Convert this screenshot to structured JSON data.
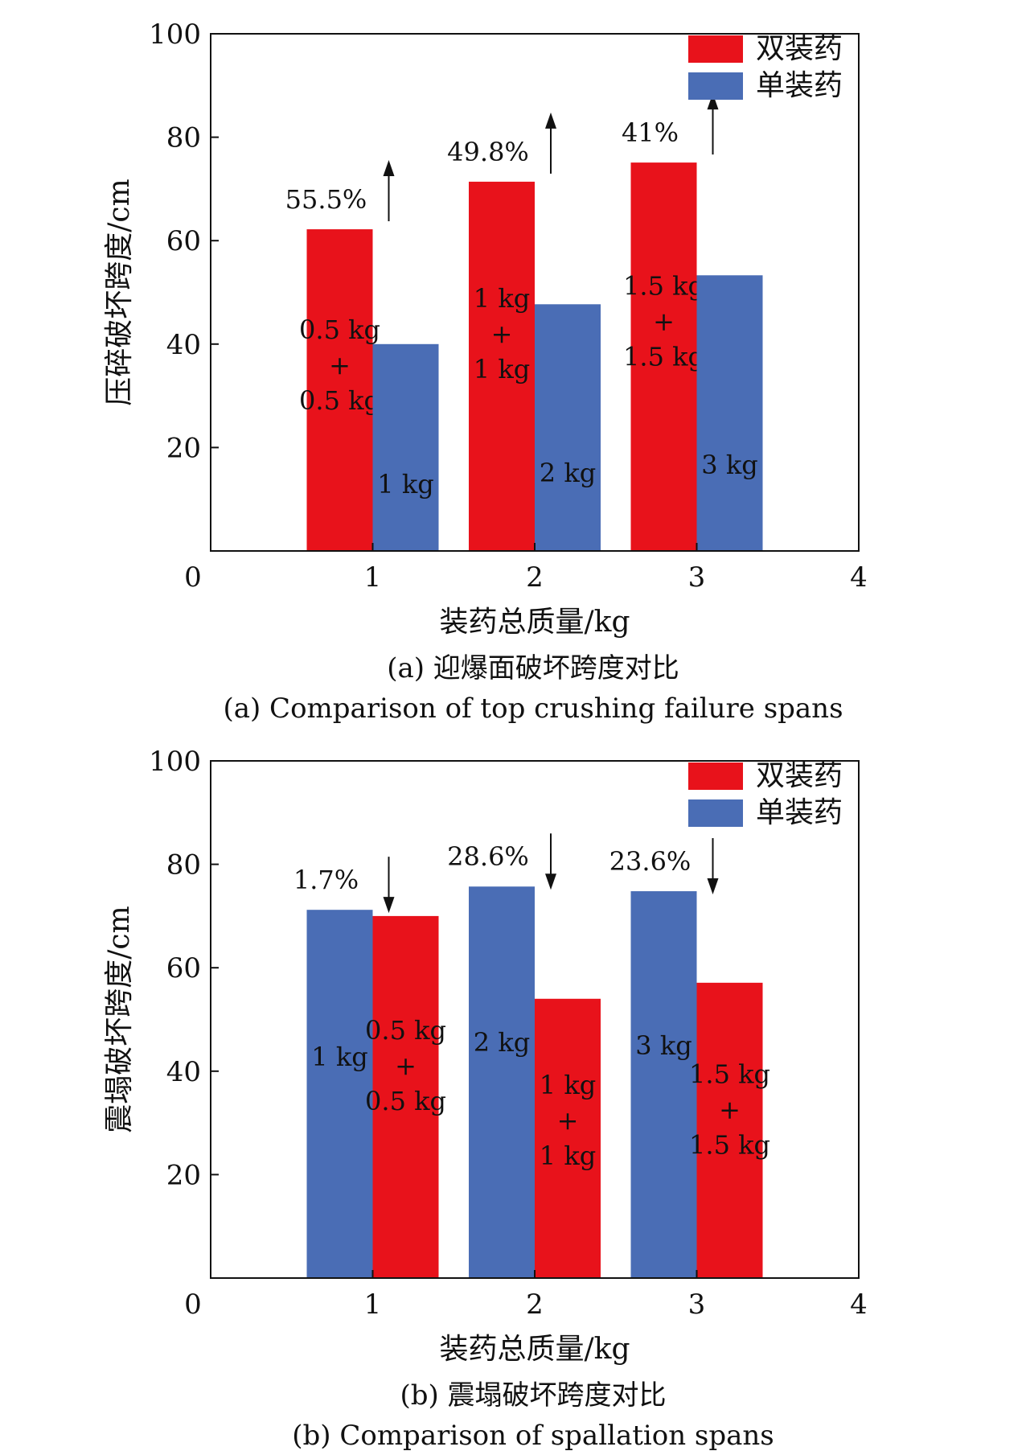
{
  "colors": {
    "double": "#e8121b",
    "single": "#4a6db5"
  },
  "chart_data": [
    {
      "type": "bar",
      "categories": [
        "1",
        "2",
        "3"
      ],
      "x_ticks": [
        "0",
        "1",
        "2",
        "3",
        "4"
      ],
      "y_ticks": [
        "100",
        "80",
        "60",
        "40",
        "20"
      ],
      "xlim": [
        0,
        4
      ],
      "ylim": [
        0,
        100
      ],
      "xlabel": "装药总质量/kg",
      "ylabel": "压碎破坏跨度/cm",
      "caption_cn": "(a) 迎爆面破坏跨度对比",
      "caption_en": "(a) Comparison of top crushing failure spans",
      "legend_position": "top-right",
      "legend": [
        "双装药",
        "单装药"
      ],
      "series": [
        {
          "name": "双装药",
          "values": [
            62.2,
            71.4,
            75.1
          ],
          "labels": [
            [
              "0.5 kg",
              "+",
              "0.5 kg"
            ],
            [
              "1 kg",
              "+",
              "1 kg"
            ],
            [
              "1.5 kg",
              "+",
              "1.5 kg"
            ]
          ]
        },
        {
          "name": "单装药",
          "values": [
            40.0,
            47.7,
            53.3
          ],
          "labels": [
            [
              "1 kg"
            ],
            [
              "2 kg"
            ],
            [
              "3 kg"
            ]
          ]
        }
      ],
      "annotations": [
        "55.5%",
        "49.8%",
        "41%"
      ],
      "arrow_direction": "up"
    },
    {
      "type": "bar",
      "categories": [
        "1",
        "2",
        "3"
      ],
      "x_ticks": [
        "0",
        "1",
        "2",
        "3",
        "4"
      ],
      "y_ticks": [
        "100",
        "80",
        "60",
        "40",
        "20"
      ],
      "xlim": [
        0,
        4
      ],
      "ylim": [
        0,
        100
      ],
      "xlabel": "装药总质量/kg",
      "ylabel": "震塌破坏跨度/cm",
      "caption_cn": "(b) 震塌破坏跨度对比",
      "caption_en": "(b) Comparison of spallation spans",
      "legend_position": "top-right",
      "legend": [
        "双装药",
        "单装药"
      ],
      "series": [
        {
          "name": "单装药",
          "values": [
            71.2,
            75.7,
            74.8
          ],
          "labels": [
            [
              "1 kg"
            ],
            [
              "2 kg"
            ],
            [
              "3 kg"
            ]
          ]
        },
        {
          "name": "双装药",
          "values": [
            70.0,
            54.0,
            57.1
          ],
          "labels": [
            [
              "0.5 kg",
              "+",
              "0.5 kg"
            ],
            [
              "1 kg",
              "+",
              "1 kg"
            ],
            [
              "1.5 kg",
              "+",
              "1.5 kg"
            ]
          ]
        }
      ],
      "annotations": [
        "1.7%",
        "28.6%",
        "23.6%"
      ],
      "arrow_direction": "down"
    }
  ]
}
